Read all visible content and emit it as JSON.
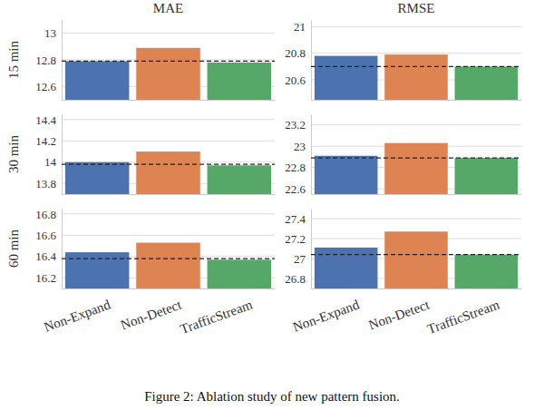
{
  "chart_data": [
    {
      "type": "bar",
      "title": "MAE",
      "y_label": "15 min",
      "categories": [
        "Non-Expand",
        "Non-Detect",
        "TrafficStream"
      ],
      "values": [
        12.79,
        12.89,
        12.78
      ],
      "colors": [
        "#4c72b0",
        "#dd8452",
        "#55a868"
      ],
      "hline": 12.79,
      "ylim": [
        12.5,
        13.1
      ],
      "yticks": [
        12.6,
        12.8,
        13.0
      ],
      "grid": true,
      "tick_labels": "y"
    },
    {
      "type": "bar",
      "title": "RMSE",
      "categories": [
        "Non-Expand",
        "Non-Detect",
        "TrafficStream"
      ],
      "values": [
        20.78,
        20.79,
        20.7
      ],
      "colors": [
        "#4c72b0",
        "#dd8452",
        "#55a868"
      ],
      "hline": 20.7,
      "ylim": [
        20.45,
        21.05
      ],
      "yticks": [
        20.6,
        20.8,
        21.0
      ],
      "grid": true,
      "tick_labels": "y"
    },
    {
      "type": "bar",
      "y_label": "30 min",
      "categories": [
        "Non-Expand",
        "Non-Detect",
        "TrafficStream"
      ],
      "values": [
        14.0,
        14.1,
        13.97
      ],
      "colors": [
        "#4c72b0",
        "#dd8452",
        "#55a868"
      ],
      "hline": 13.98,
      "ylim": [
        13.7,
        14.45
      ],
      "yticks": [
        13.8,
        14.0,
        14.2,
        14.4
      ],
      "grid": true,
      "tick_labels": "y"
    },
    {
      "type": "bar",
      "categories": [
        "Non-Expand",
        "Non-Detect",
        "TrafficStream"
      ],
      "values": [
        22.91,
        23.03,
        22.89
      ],
      "colors": [
        "#4c72b0",
        "#dd8452",
        "#55a868"
      ],
      "hline": 22.89,
      "ylim": [
        22.55,
        23.3
      ],
      "yticks": [
        22.6,
        22.8,
        23.0,
        23.2
      ],
      "grid": true,
      "tick_labels": "y"
    },
    {
      "type": "bar",
      "y_label": "60 min",
      "categories": [
        "Non-Expand",
        "Non-Detect",
        "TrafficStream"
      ],
      "values": [
        16.44,
        16.53,
        16.37
      ],
      "colors": [
        "#4c72b0",
        "#dd8452",
        "#55a868"
      ],
      "hline": 16.38,
      "ylim": [
        16.1,
        16.85
      ],
      "yticks": [
        16.2,
        16.4,
        16.6,
        16.8
      ],
      "grid": true
    },
    {
      "type": "bar",
      "categories": [
        "Non-Expand",
        "Non-Detect",
        "TrafficStream"
      ],
      "values": [
        27.11,
        27.27,
        27.04
      ],
      "colors": [
        "#4c72b0",
        "#dd8452",
        "#55a868"
      ],
      "hline": 27.04,
      "ylim": [
        26.7,
        27.5
      ],
      "yticks": [
        26.8,
        27.0,
        27.2,
        27.4
      ],
      "grid": true
    }
  ],
  "figure": {
    "caption": "Figure 2: Ablation study of new pattern fusion."
  }
}
